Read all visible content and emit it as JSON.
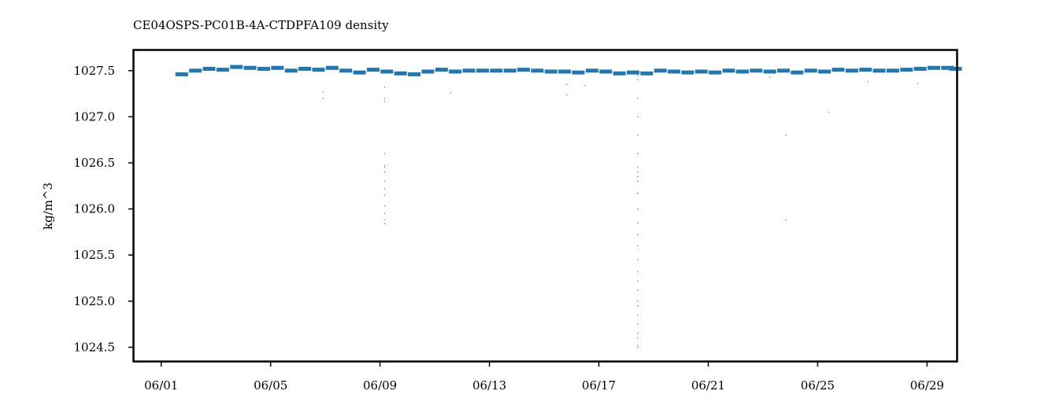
{
  "chart_data": {
    "type": "scatter",
    "title": "CE04OSPS-PC01B-4A-CTDPFA109 density",
    "xlabel": "",
    "ylabel": "kg/m^3",
    "x_axis": "date",
    "xlim": [
      "2023-05-31T00:00",
      "2023-06-30T02:00"
    ],
    "ylim": [
      1024.35,
      1027.72
    ],
    "xticks": [
      {
        "value": "2023-06-01",
        "label": "06/01"
      },
      {
        "value": "2023-06-05",
        "label": "06/05"
      },
      {
        "value": "2023-06-09",
        "label": "06/09"
      },
      {
        "value": "2023-06-13",
        "label": "06/13"
      },
      {
        "value": "2023-06-17",
        "label": "06/17"
      },
      {
        "value": "2023-06-21",
        "label": "06/21"
      },
      {
        "value": "2023-06-25",
        "label": "06/25"
      },
      {
        "value": "2023-06-29",
        "label": "06/29"
      }
    ],
    "yticks": [
      {
        "value": 1024.5,
        "label": "1024.5"
      },
      {
        "value": 1025.0,
        "label": "1025.0"
      },
      {
        "value": 1025.5,
        "label": "1025.5"
      },
      {
        "value": 1026.0,
        "label": "1026.0"
      },
      {
        "value": 1026.5,
        "label": "1026.5"
      },
      {
        "value": 1027.0,
        "label": "1027.0"
      },
      {
        "value": 1027.5,
        "label": "1027.5"
      }
    ],
    "grid": false,
    "series": [
      {
        "color": "#1f77b4",
        "marker": "small-dot",
        "x": [
          "2023-06-01T18:00",
          "2023-06-02T06:00",
          "2023-06-02T18:00",
          "2023-06-03T06:00",
          "2023-06-03T18:00",
          "2023-06-04T06:00",
          "2023-06-04T18:00",
          "2023-06-05T06:00",
          "2023-06-05T18:00",
          "2023-06-06T06:00",
          "2023-06-06T18:00",
          "2023-06-07T06:00",
          "2023-06-07T18:00",
          "2023-06-08T06:00",
          "2023-06-08T18:00",
          "2023-06-09T06:00",
          "2023-06-09T18:00",
          "2023-06-10T06:00",
          "2023-06-10T18:00",
          "2023-06-11T06:00",
          "2023-06-11T18:00",
          "2023-06-12T06:00",
          "2023-06-12T18:00",
          "2023-06-13T06:00",
          "2023-06-13T18:00",
          "2023-06-14T06:00",
          "2023-06-14T18:00",
          "2023-06-15T06:00",
          "2023-06-15T18:00",
          "2023-06-16T06:00",
          "2023-06-16T18:00",
          "2023-06-17T06:00",
          "2023-06-17T18:00",
          "2023-06-18T06:00",
          "2023-06-18T18:00",
          "2023-06-19T06:00",
          "2023-06-19T18:00",
          "2023-06-20T06:00",
          "2023-06-20T18:00",
          "2023-06-21T06:00",
          "2023-06-21T18:00",
          "2023-06-22T06:00",
          "2023-06-22T18:00",
          "2023-06-23T06:00",
          "2023-06-23T18:00",
          "2023-06-24T06:00",
          "2023-06-24T18:00",
          "2023-06-25T06:00",
          "2023-06-25T18:00",
          "2023-06-26T06:00",
          "2023-06-26T18:00",
          "2023-06-27T06:00",
          "2023-06-27T18:00",
          "2023-06-28T06:00",
          "2023-06-28T18:00",
          "2023-06-29T06:00",
          "2023-06-29T18:00",
          "2023-06-30T01:00"
        ],
        "y": [
          1027.46,
          1027.5,
          1027.52,
          1027.51,
          1027.54,
          1027.53,
          1027.52,
          1027.53,
          1027.5,
          1027.52,
          1027.51,
          1027.53,
          1027.5,
          1027.48,
          1027.51,
          1027.49,
          1027.47,
          1027.46,
          1027.49,
          1027.51,
          1027.49,
          1027.5,
          1027.5,
          1027.5,
          1027.5,
          1027.51,
          1027.5,
          1027.49,
          1027.49,
          1027.48,
          1027.5,
          1027.49,
          1027.47,
          1027.48,
          1027.47,
          1027.5,
          1027.49,
          1027.48,
          1027.49,
          1027.48,
          1027.5,
          1027.49,
          1027.5,
          1027.49,
          1027.5,
          1027.48,
          1027.5,
          1027.49,
          1027.51,
          1027.5,
          1027.51,
          1027.5,
          1027.5,
          1027.51,
          1027.52,
          1027.53,
          1027.53,
          1027.52
        ]
      },
      {
        "color": "#1f77b4",
        "marker": "small-dot",
        "x": [
          "2023-06-06T22:00",
          "2023-06-06T22:00",
          "2023-06-09T04:00",
          "2023-06-09T04:00",
          "2023-06-09T04:00",
          "2023-06-09T04:00",
          "2023-06-09T04:00",
          "2023-06-09T04:00",
          "2023-06-09T04:00",
          "2023-06-09T04:00",
          "2023-06-09T04:00",
          "2023-06-09T04:00",
          "2023-06-09T04:00",
          "2023-06-09T04:00",
          "2023-06-09T04:00",
          "2023-06-09T04:00",
          "2023-06-11T14:00",
          "2023-06-15T20:00",
          "2023-06-15T20:00",
          "2023-06-16T12:00",
          "2023-06-18T10:00",
          "2023-06-18T10:00",
          "2023-06-18T10:00",
          "2023-06-18T10:00",
          "2023-06-18T10:00",
          "2023-06-18T10:00",
          "2023-06-18T10:00",
          "2023-06-18T10:00",
          "2023-06-18T10:00",
          "2023-06-18T10:00",
          "2023-06-18T10:00",
          "2023-06-18T10:00",
          "2023-06-18T10:00",
          "2023-06-18T10:00",
          "2023-06-18T10:00",
          "2023-06-18T10:00",
          "2023-06-18T10:00",
          "2023-06-18T10:00",
          "2023-06-18T10:00",
          "2023-06-18T10:00",
          "2023-06-18T10:00",
          "2023-06-18T10:00",
          "2023-06-18T10:00",
          "2023-06-18T10:00",
          "2023-06-18T10:00",
          "2023-06-18T10:00",
          "2023-06-18T10:00",
          "2023-06-18T10:00",
          "2023-06-23T06:00",
          "2023-06-23T20:00",
          "2023-06-23T20:00",
          "2023-06-25T10:00",
          "2023-06-26T20:00",
          "2023-06-28T16:00"
        ],
        "y": [
          1027.27,
          1027.2,
          1027.32,
          1027.2,
          1027.17,
          1026.6,
          1026.47,
          1026.45,
          1026.4,
          1026.3,
          1026.22,
          1026.15,
          1026.03,
          1025.95,
          1025.88,
          1025.84,
          1027.26,
          1027.35,
          1027.24,
          1027.34,
          1027.4,
          1027.2,
          1027.0,
          1026.8,
          1026.6,
          1026.45,
          1026.3,
          1026.17,
          1026.0,
          1025.85,
          1025.72,
          1025.6,
          1025.45,
          1025.32,
          1025.22,
          1025.12,
          1025.0,
          1024.95,
          1024.85,
          1024.75,
          1024.65,
          1024.6,
          1024.52,
          1024.5,
          1026.4,
          1026.35,
          1026.3,
          1027.45,
          1027.43,
          1026.8,
          1025.88,
          1027.05,
          1027.38,
          1027.36
        ]
      }
    ]
  }
}
